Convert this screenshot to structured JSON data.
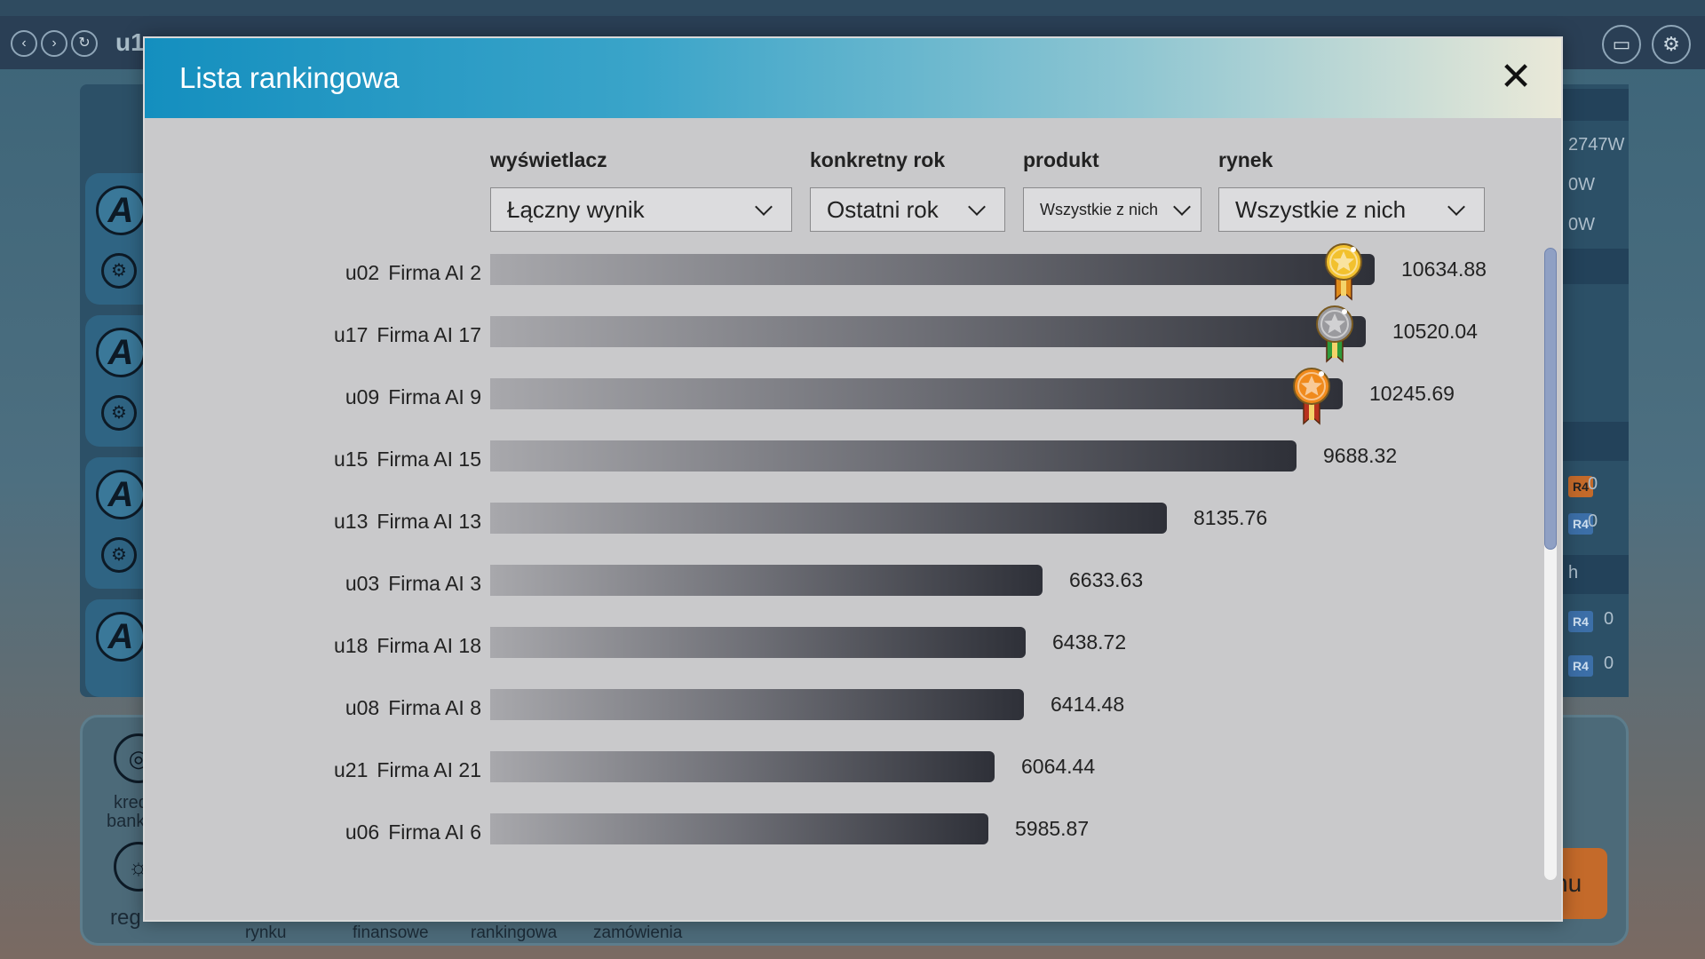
{
  "background": {
    "top_code": "u1",
    "right_values": [
      "2747W",
      "0W",
      "0W"
    ],
    "right_badges": [
      {
        "label": "R4",
        "value": "0"
      },
      {
        "label": "R4",
        "value": "0"
      },
      {
        "label": "R4",
        "value": "0"
      },
      {
        "label": "R4",
        "value": "0"
      }
    ],
    "right_heading": "h",
    "left_icon_letter": "A",
    "bottom_labels": [
      "kred",
      "bank",
      "reg"
    ],
    "bottom_tabs": [
      "rynku",
      "finansowe",
      "rankingowa",
      "zamówienia"
    ],
    "orange_button": "nu"
  },
  "modal": {
    "title": "Lista rankingowa",
    "close_symbol": "✕"
  },
  "filters": [
    {
      "label": "wyświetlacz",
      "value": "Łączny wynik"
    },
    {
      "label": "konkretny rok",
      "value": "Ostatni rok"
    },
    {
      "label": "produkt",
      "value": "Wszystkie z nich"
    },
    {
      "label": "rynek",
      "value": "Wszystkie z nich"
    }
  ],
  "ranking": [
    {
      "code": "u02",
      "name": "Firma AI 2",
      "value": "10634.88",
      "score": 10634.88,
      "medal": "gold"
    },
    {
      "code": "u17",
      "name": "Firma AI 17",
      "value": "10520.04",
      "score": 10520.04,
      "medal": "silver"
    },
    {
      "code": "u09",
      "name": "Firma AI 9",
      "value": "10245.69",
      "score": 10245.69,
      "medal": "bronze"
    },
    {
      "code": "u15",
      "name": "Firma AI 15",
      "value": "9688.32",
      "score": 9688.32
    },
    {
      "code": "u13",
      "name": "Firma AI 13",
      "value": "8135.76",
      "score": 8135.76
    },
    {
      "code": "u03",
      "name": "Firma AI 3",
      "value": "6633.63",
      "score": 6633.63
    },
    {
      "code": "u18",
      "name": "Firma AI 18",
      "value": "6438.72",
      "score": 6438.72
    },
    {
      "code": "u08",
      "name": "Firma AI 8",
      "value": "6414.48",
      "score": 6414.48
    },
    {
      "code": "u21",
      "name": "Firma AI 21",
      "value": "6064.44",
      "score": 6064.44
    },
    {
      "code": "u06",
      "name": "Firma AI 6",
      "value": "5985.87",
      "score": 5985.87
    }
  ],
  "colors": {
    "gold": "#f2c12e",
    "silver": "#9a9a9e",
    "bronze": "#f08a1c"
  }
}
